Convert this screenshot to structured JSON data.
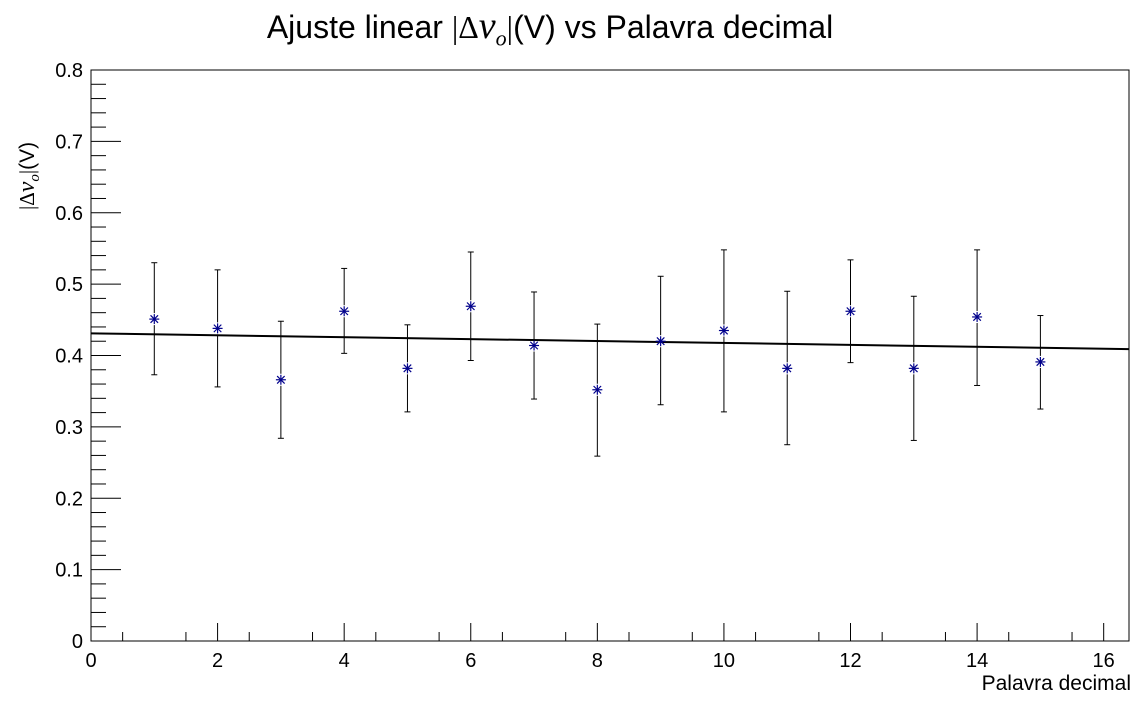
{
  "title": {
    "prefix": "Ajuste linear ",
    "bar_open": "|",
    "delta": "Δ",
    "v": "v",
    "sub": "o",
    "bar_close": "|",
    "suffix": "(V) vs Palavra decimal"
  },
  "ylabel": {
    "bar_open": "|",
    "delta": "Δ",
    "v": "v",
    "sub": "o",
    "bar_close": "|",
    "suffix": "(V)"
  },
  "chart_data": {
    "type": "scatter",
    "title": "Ajuste linear |Δv_o|(V) vs Palavra decimal",
    "xlabel": "Palavra decimal",
    "ylabel": "|Δv_o|(V)",
    "xlim": [
      0,
      16.4
    ],
    "ylim": [
      0,
      0.8
    ],
    "x_ticks": [
      0,
      2,
      4,
      6,
      8,
      10,
      12,
      14,
      16
    ],
    "y_ticks": [
      0,
      0.1,
      0.2,
      0.3,
      0.4,
      0.5,
      0.6,
      0.7,
      0.8
    ],
    "x_tick_labels": [
      "0",
      "2",
      "4",
      "6",
      "8",
      "10",
      "12",
      "14",
      "16"
    ],
    "y_tick_labels": [
      "0",
      "0.1",
      "0.2",
      "0.3",
      "0.4",
      "0.5",
      "0.6",
      "0.7",
      "0.8"
    ],
    "grid": false,
    "marker": "asterisk",
    "marker_color": "#00008b",
    "errorbar_color": "#000000",
    "fit_color": "#000000",
    "points": [
      {
        "x": 1,
        "y": 0.451,
        "ylow": 0.373,
        "yhigh": 0.53
      },
      {
        "x": 2,
        "y": 0.438,
        "ylow": 0.356,
        "yhigh": 0.52
      },
      {
        "x": 3,
        "y": 0.366,
        "ylow": 0.284,
        "yhigh": 0.448
      },
      {
        "x": 4,
        "y": 0.462,
        "ylow": 0.403,
        "yhigh": 0.522
      },
      {
        "x": 5,
        "y": 0.382,
        "ylow": 0.321,
        "yhigh": 0.443
      },
      {
        "x": 6,
        "y": 0.469,
        "ylow": 0.393,
        "yhigh": 0.545
      },
      {
        "x": 7,
        "y": 0.414,
        "ylow": 0.339,
        "yhigh": 0.489
      },
      {
        "x": 8,
        "y": 0.352,
        "ylow": 0.259,
        "yhigh": 0.444
      },
      {
        "x": 9,
        "y": 0.42,
        "ylow": 0.331,
        "yhigh": 0.511
      },
      {
        "x": 10,
        "y": 0.435,
        "ylow": 0.321,
        "yhigh": 0.548
      },
      {
        "x": 11,
        "y": 0.382,
        "ylow": 0.275,
        "yhigh": 0.49
      },
      {
        "x": 12,
        "y": 0.462,
        "ylow": 0.39,
        "yhigh": 0.534
      },
      {
        "x": 13,
        "y": 0.382,
        "ylow": 0.281,
        "yhigh": 0.483
      },
      {
        "x": 14,
        "y": 0.454,
        "ylow": 0.358,
        "yhigh": 0.548
      },
      {
        "x": 15,
        "y": 0.391,
        "ylow": 0.325,
        "yhigh": 0.456
      }
    ],
    "fit_line": {
      "x": [
        0,
        16.4
      ],
      "y": [
        0.431,
        0.409
      ]
    }
  }
}
